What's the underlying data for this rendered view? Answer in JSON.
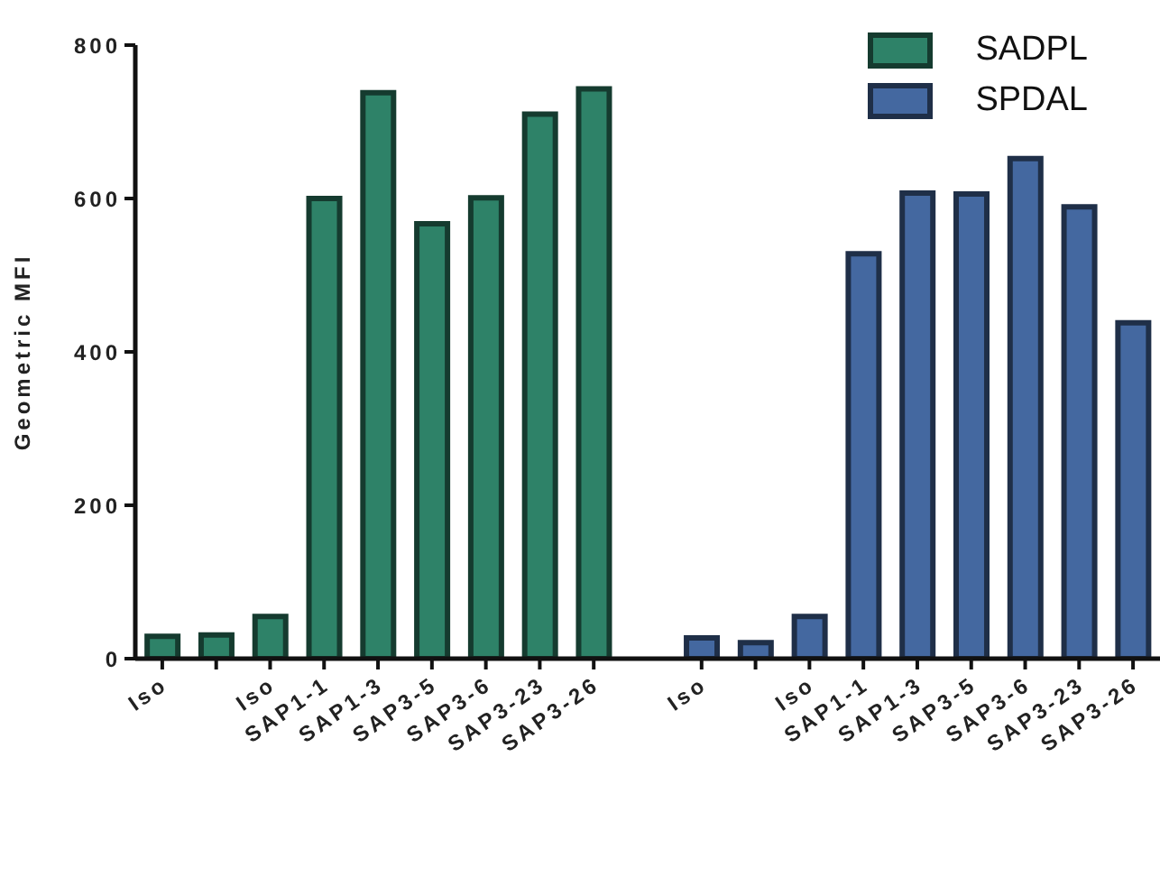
{
  "chart_data": {
    "type": "bar",
    "ylabel": "Geometric MFI",
    "categories": [
      "Iso",
      null,
      "Iso",
      "SAP1-1",
      "SAP1-3",
      "SAP3-5",
      "SAP3-6",
      "SAP3-23",
      "SAP3-26",
      null,
      "Iso",
      null,
      "Iso",
      "SAP1-1",
      "SAP1-3",
      "SAP3-5",
      "SAP3-6",
      "SAP3-23",
      "SAP3-26"
    ],
    "series": [
      {
        "name": "SADPL",
        "color": "#2e8268",
        "values": [
          29,
          31,
          55,
          600,
          738,
          567,
          601,
          710,
          743,
          null,
          null,
          null,
          null,
          null,
          null,
          null,
          null,
          null,
          null
        ]
      },
      {
        "name": "SPDAL",
        "color": "#4468a0",
        "values": [
          null,
          null,
          null,
          null,
          null,
          null,
          null,
          null,
          null,
          null,
          27,
          21,
          55,
          528,
          607,
          606,
          652,
          589,
          438
        ]
      }
    ],
    "ylim": [
      0,
      800
    ],
    "yticks": [
      0,
      200,
      400,
      600,
      800
    ],
    "grid": false,
    "legend": "top right"
  }
}
